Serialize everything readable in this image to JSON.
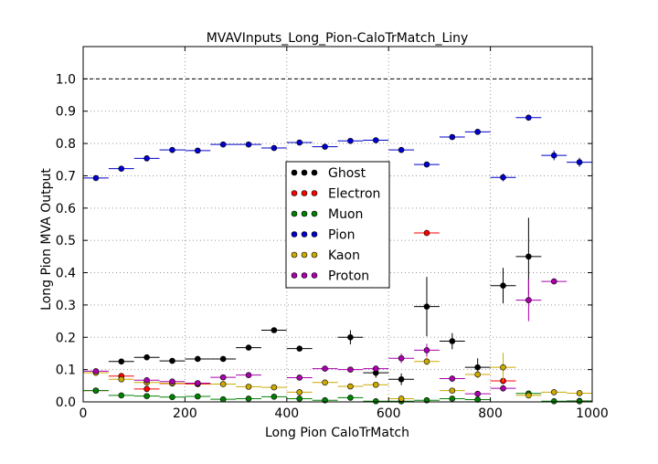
{
  "chart_data": {
    "type": "scatter",
    "title": "MVAVInputs_Long_Pion-CaloTrMatch_Liny",
    "xlabel": "Long Pion CaloTrMatch",
    "ylabel": "Long Pion MVA Output",
    "xlim": [
      0,
      1000
    ],
    "ylim": [
      0,
      1.1
    ],
    "xticks": [
      0,
      200,
      400,
      600,
      800,
      1000
    ],
    "xtick_labels": [
      "0",
      "200",
      "400",
      "600",
      "800",
      "1000"
    ],
    "yticks": [
      0.0,
      0.1,
      0.2,
      0.3,
      0.4,
      0.5,
      0.6,
      0.7,
      0.8,
      0.9,
      1.0
    ],
    "ytick_labels": [
      "0.0",
      "0.1",
      "0.2",
      "0.3",
      "0.4",
      "0.5",
      "0.6",
      "0.7",
      "0.8",
      "0.9",
      "1.0"
    ],
    "grid": true,
    "reference_line": 1.0,
    "legend_position": "center",
    "x_bin_halfwidth": 25,
    "series": [
      {
        "name": "Ghost",
        "color": "#000000",
        "points": [
          {
            "x": 75,
            "y": 0.125,
            "err": 0.005
          },
          {
            "x": 125,
            "y": 0.138,
            "err": 0.005
          },
          {
            "x": 175,
            "y": 0.127,
            "err": 0.005
          },
          {
            "x": 225,
            "y": 0.133,
            "err": 0.005
          },
          {
            "x": 275,
            "y": 0.133,
            "err": 0.005
          },
          {
            "x": 325,
            "y": 0.168,
            "err": 0.006
          },
          {
            "x": 375,
            "y": 0.222,
            "err": 0.006
          },
          {
            "x": 425,
            "y": 0.165,
            "err": 0.007
          },
          {
            "x": 525,
            "y": 0.2,
            "err": 0.022
          },
          {
            "x": 575,
            "y": 0.09,
            "err": 0.015
          },
          {
            "x": 625,
            "y": 0.07,
            "err": 0.018
          },
          {
            "x": 675,
            "y": 0.295,
            "err": 0.092
          },
          {
            "x": 725,
            "y": 0.188,
            "err": 0.025
          },
          {
            "x": 775,
            "y": 0.107,
            "err": 0.028
          },
          {
            "x": 825,
            "y": 0.36,
            "err": 0.055
          },
          {
            "x": 875,
            "y": 0.45,
            "err": 0.12
          },
          {
            "x": 975,
            "y": 0.003,
            "err": 0.003
          }
        ]
      },
      {
        "name": "Electron",
        "color": "#ff0000",
        "points": [
          {
            "x": 25,
            "y": 0.035,
            "err": 0.003
          },
          {
            "x": 75,
            "y": 0.08,
            "err": 0.005
          },
          {
            "x": 125,
            "y": 0.04,
            "err": 0.004
          },
          {
            "x": 175,
            "y": 0.057,
            "err": 0.004
          },
          {
            "x": 225,
            "y": 0.055,
            "err": 0.004
          },
          {
            "x": 675,
            "y": 0.523,
            "err": 0.005
          },
          {
            "x": 825,
            "y": 0.065,
            "err": 0.01
          }
        ]
      },
      {
        "name": "Muon",
        "color": "#008000",
        "points": [
          {
            "x": 25,
            "y": 0.035,
            "err": 0.003
          },
          {
            "x": 75,
            "y": 0.02,
            "err": 0.003
          },
          {
            "x": 125,
            "y": 0.018,
            "err": 0.003
          },
          {
            "x": 175,
            "y": 0.015,
            "err": 0.003
          },
          {
            "x": 225,
            "y": 0.017,
            "err": 0.003
          },
          {
            "x": 275,
            "y": 0.008,
            "err": 0.002
          },
          {
            "x": 325,
            "y": 0.01,
            "err": 0.002
          },
          {
            "x": 375,
            "y": 0.016,
            "err": 0.002
          },
          {
            "x": 425,
            "y": 0.01,
            "err": 0.002
          },
          {
            "x": 475,
            "y": 0.005,
            "err": 0.002
          },
          {
            "x": 525,
            "y": 0.013,
            "err": 0.002
          },
          {
            "x": 575,
            "y": 0.002,
            "err": 0.002
          },
          {
            "x": 625,
            "y": 0.002,
            "err": 0.002
          },
          {
            "x": 675,
            "y": 0.005,
            "err": 0.002
          },
          {
            "x": 725,
            "y": 0.01,
            "err": 0.003
          },
          {
            "x": 775,
            "y": 0.007,
            "err": 0.003
          },
          {
            "x": 875,
            "y": 0.026,
            "err": 0.004
          },
          {
            "x": 925,
            "y": 0.002,
            "err": 0.002
          },
          {
            "x": 975,
            "y": 0.002,
            "err": 0.002
          }
        ]
      },
      {
        "name": "Pion",
        "color": "#0000cc",
        "points": [
          {
            "x": 25,
            "y": 0.693,
            "err": 0.003
          },
          {
            "x": 75,
            "y": 0.722,
            "err": 0.003
          },
          {
            "x": 125,
            "y": 0.754,
            "err": 0.003
          },
          {
            "x": 175,
            "y": 0.78,
            "err": 0.003
          },
          {
            "x": 225,
            "y": 0.778,
            "err": 0.003
          },
          {
            "x": 275,
            "y": 0.797,
            "err": 0.003
          },
          {
            "x": 325,
            "y": 0.797,
            "err": 0.003
          },
          {
            "x": 375,
            "y": 0.786,
            "err": 0.003
          },
          {
            "x": 425,
            "y": 0.803,
            "err": 0.003
          },
          {
            "x": 475,
            "y": 0.79,
            "err": 0.004
          },
          {
            "x": 525,
            "y": 0.808,
            "err": 0.004
          },
          {
            "x": 575,
            "y": 0.81,
            "err": 0.004
          },
          {
            "x": 625,
            "y": 0.78,
            "err": 0.004
          },
          {
            "x": 675,
            "y": 0.735,
            "err": 0.004
          },
          {
            "x": 725,
            "y": 0.82,
            "err": 0.005
          },
          {
            "x": 775,
            "y": 0.836,
            "err": 0.008
          },
          {
            "x": 825,
            "y": 0.695,
            "err": 0.012
          },
          {
            "x": 875,
            "y": 0.88,
            "err": 0.005
          },
          {
            "x": 925,
            "y": 0.763,
            "err": 0.015
          },
          {
            "x": 975,
            "y": 0.742,
            "err": 0.014
          }
        ]
      },
      {
        "name": "Kaon",
        "color": "#ccaa00",
        "points": [
          {
            "x": 25,
            "y": 0.09,
            "err": 0.004
          },
          {
            "x": 75,
            "y": 0.07,
            "err": 0.004
          },
          {
            "x": 125,
            "y": 0.06,
            "err": 0.004
          },
          {
            "x": 175,
            "y": 0.058,
            "err": 0.004
          },
          {
            "x": 225,
            "y": 0.057,
            "err": 0.004
          },
          {
            "x": 275,
            "y": 0.055,
            "err": 0.004
          },
          {
            "x": 325,
            "y": 0.047,
            "err": 0.004
          },
          {
            "x": 375,
            "y": 0.045,
            "err": 0.004
          },
          {
            "x": 425,
            "y": 0.03,
            "err": 0.004
          },
          {
            "x": 475,
            "y": 0.06,
            "err": 0.005
          },
          {
            "x": 525,
            "y": 0.048,
            "err": 0.005
          },
          {
            "x": 575,
            "y": 0.053,
            "err": 0.006
          },
          {
            "x": 625,
            "y": 0.01,
            "err": 0.005
          },
          {
            "x": 675,
            "y": 0.125,
            "err": 0.012
          },
          {
            "x": 725,
            "y": 0.035,
            "err": 0.008
          },
          {
            "x": 775,
            "y": 0.085,
            "err": 0.012
          },
          {
            "x": 825,
            "y": 0.107,
            "err": 0.045
          },
          {
            "x": 875,
            "y": 0.02,
            "err": 0.008
          },
          {
            "x": 925,
            "y": 0.03,
            "err": 0.006
          },
          {
            "x": 975,
            "y": 0.027,
            "err": 0.006
          }
        ]
      },
      {
        "name": "Proton",
        "color": "#aa00aa",
        "points": [
          {
            "x": 25,
            "y": 0.095,
            "err": 0.004
          },
          {
            "x": 125,
            "y": 0.067,
            "err": 0.004
          },
          {
            "x": 175,
            "y": 0.063,
            "err": 0.004
          },
          {
            "x": 225,
            "y": 0.058,
            "err": 0.004
          },
          {
            "x": 275,
            "y": 0.076,
            "err": 0.004
          },
          {
            "x": 325,
            "y": 0.083,
            "err": 0.004
          },
          {
            "x": 425,
            "y": 0.075,
            "err": 0.004
          },
          {
            "x": 475,
            "y": 0.103,
            "err": 0.008
          },
          {
            "x": 525,
            "y": 0.1,
            "err": 0.008
          },
          {
            "x": 575,
            "y": 0.103,
            "err": 0.008
          },
          {
            "x": 625,
            "y": 0.135,
            "err": 0.015
          },
          {
            "x": 675,
            "y": 0.16,
            "err": 0.02
          },
          {
            "x": 725,
            "y": 0.072,
            "err": 0.01
          },
          {
            "x": 775,
            "y": 0.025,
            "err": 0.008
          },
          {
            "x": 825,
            "y": 0.042,
            "err": 0.01
          },
          {
            "x": 875,
            "y": 0.315,
            "err": 0.065
          },
          {
            "x": 925,
            "y": 0.373,
            "err": 0.005
          }
        ]
      }
    ]
  }
}
